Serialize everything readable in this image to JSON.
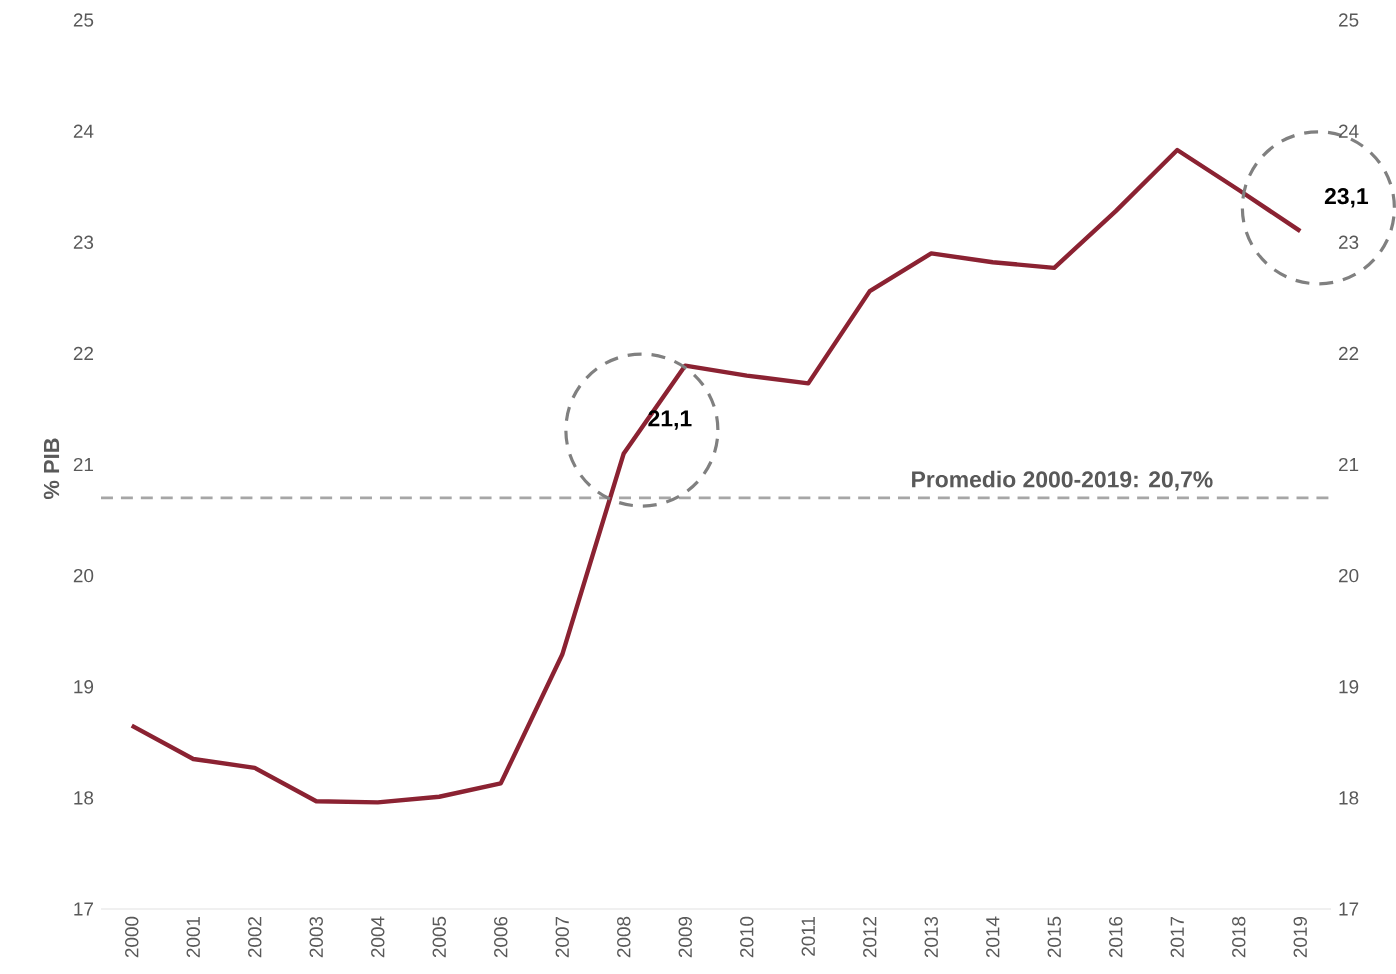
{
  "chart_data": {
    "type": "line",
    "ylabel": "% PIB",
    "categories": [
      "2000",
      "2001",
      "2002",
      "2003",
      "2004",
      "2005",
      "2006",
      "2007",
      "2008",
      "2009",
      "2010",
      "2011",
      "2012",
      "2013",
      "2014",
      "2015",
      "2016",
      "2017",
      "2018",
      "2019"
    ],
    "series": [
      {
        "color": "#8b2232",
        "values": [
          18.65,
          18.35,
          18.27,
          17.97,
          17.96,
          18.01,
          18.13,
          19.29,
          21.1,
          21.89,
          21.8,
          21.73,
          22.56,
          22.9,
          22.82,
          22.77,
          23.28,
          23.83,
          23.47,
          23.1
        ]
      }
    ],
    "ylim": [
      17,
      25
    ],
    "yticks": [
      17,
      18,
      19,
      20,
      21,
      22,
      23,
      24,
      25
    ],
    "y2lim": [
      17,
      25
    ],
    "y2ticks": [
      17,
      18,
      19,
      20,
      21,
      22,
      23,
      24,
      25
    ],
    "ref_lines": [
      {
        "axis": "y",
        "value": 20.7,
        "label": "Promedio 2000-2019:   20,7%",
        "color": "#a6a6a6",
        "line_style": "dashed"
      }
    ],
    "annotations": [
      {
        "text": "21,1",
        "x": "2008",
        "y": 21.1
      },
      {
        "text": "23,1",
        "x": "2019",
        "y": 23.1
      }
    ],
    "grid": false,
    "marker": "none",
    "line_style": "solid"
  }
}
